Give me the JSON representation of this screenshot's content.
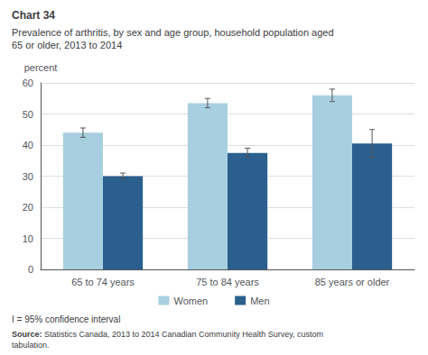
{
  "chart_data": {
    "type": "bar",
    "title": "Chart 34",
    "subtitle": [
      "Prevalence of arthritis, by sex and age group, household population aged",
      "65 or older, 2013 to 2014"
    ],
    "ylabel": "percent",
    "categories": [
      "65 to 74 years",
      "75 to 84 years",
      "85 years or older"
    ],
    "series": [
      {
        "name": "Women",
        "color": "#a8cfe0",
        "values": [
          44,
          53.5,
          56
        ],
        "errors": [
          1.5,
          1.5,
          2.0
        ]
      },
      {
        "name": "Men",
        "color": "#2b5f8e",
        "values": [
          30,
          37.5,
          40.5
        ],
        "errors": [
          1.0,
          1.5,
          4.5
        ]
      }
    ],
    "ylim": [
      0,
      60
    ],
    "yticks": [
      0,
      10,
      20,
      30,
      40,
      50,
      60
    ],
    "grid": true,
    "legend": "bottom",
    "footnote": "I = 95% confidence interval",
    "source": "Source: Statistics Canada, 2013 to 2014 Canadian Community Health Survey, custom tabulation."
  }
}
